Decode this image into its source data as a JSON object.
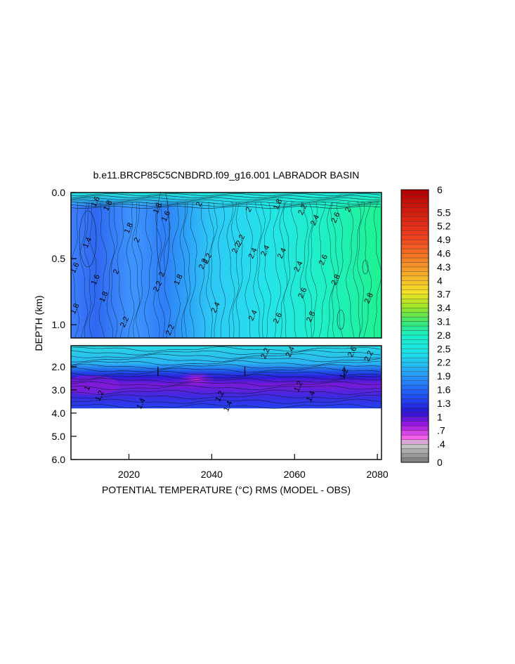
{
  "chart_data": {
    "type": "heatmap",
    "title": "b.e11.BRCP85C5CNBDRD.f09_g16.001 LABRADOR BASIN",
    "xlabel": "POTENTIAL TEMPERATURE (°C) RMS (MODEL - OBS)",
    "ylabel": "DEPTH (km)",
    "x_ticks": [
      2020,
      2040,
      2060,
      2080
    ],
    "x_tick_labels": [
      "2020",
      "2040",
      "2060",
      "2080"
    ],
    "xlim": [
      2006,
      2081
    ],
    "upper_panel": {
      "ylim": [
        0.0,
        1.1
      ],
      "y_ticks": [
        0.0,
        0.5,
        1.0
      ],
      "y_tick_labels": [
        "0.0",
        "0.5",
        "1.0"
      ]
    },
    "lower_panel": {
      "ylim": [
        1.1,
        6.0
      ],
      "y_ticks": [
        2.0,
        3.0,
        4.0,
        5.0,
        6.0
      ],
      "y_tick_labels": [
        "2.0",
        "3.0",
        "4.0",
        "5.0",
        "6.0"
      ],
      "data_bottom_depth": 3.8
    },
    "colorbar": {
      "min": 0,
      "max": 6,
      "tick_values": [
        6,
        5.5,
        5.2,
        4.9,
        4.6,
        4.3,
        4,
        3.7,
        3.4,
        3.1,
        2.8,
        2.5,
        2.2,
        1.9,
        1.6,
        1.3,
        1,
        0.7,
        0.4,
        0
      ],
      "tick_labels": [
        "6",
        "5.5",
        "5.2",
        "4.9",
        "4.6",
        "4.3",
        "4",
        "3.7",
        "3.4",
        "3.1",
        "2.8",
        "2.5",
        "2.2",
        "1.9",
        "1.6",
        "1.3",
        "1",
        ".7",
        ".4",
        "0"
      ]
    },
    "contour_labels": [
      {
        "text": "1.6",
        "x": 2012,
        "d": 0.07
      },
      {
        "text": "1.8",
        "x": 2015,
        "d": 0.1
      },
      {
        "text": "1.8",
        "x": 2020,
        "d": 0.27
      },
      {
        "text": "1.8",
        "x": 2027,
        "d": 0.12
      },
      {
        "text": "1.6",
        "x": 2029,
        "d": 0.18
      },
      {
        "text": "2",
        "x": 2037,
        "d": 0.09
      },
      {
        "text": "1.4",
        "x": 2010,
        "d": 0.38
      },
      {
        "text": "1.6",
        "x": 2007,
        "d": 0.57
      },
      {
        "text": "1.6",
        "x": 2012,
        "d": 0.66
      },
      {
        "text": "1.8",
        "x": 2014,
        "d": 0.79
      },
      {
        "text": "1.8",
        "x": 2007,
        "d": 0.88
      },
      {
        "text": "2",
        "x": 2017,
        "d": 0.6
      },
      {
        "text": "2",
        "x": 2022,
        "d": 0.36
      },
      {
        "text": "2.2",
        "x": 2027,
        "d": 0.71
      },
      {
        "text": "2",
        "x": 2028,
        "d": 0.62
      },
      {
        "text": "1.8",
        "x": 2032,
        "d": 0.66
      },
      {
        "text": "2.2",
        "x": 2019,
        "d": 0.98
      },
      {
        "text": "2.2",
        "x": 2030,
        "d": 1.04
      },
      {
        "text": "2.2",
        "x": 2039,
        "d": 0.5
      },
      {
        "text": "2.2",
        "x": 2038,
        "d": 0.54
      },
      {
        "text": "2.2",
        "x": 2047,
        "d": 0.36
      },
      {
        "text": "2.2",
        "x": 2046,
        "d": 0.42
      },
      {
        "text": "2.4",
        "x": 2041,
        "d": 0.87
      },
      {
        "text": "2",
        "x": 2049,
        "d": 0.13
      },
      {
        "text": "1.8",
        "x": 2056,
        "d": 0.09
      },
      {
        "text": "2.4",
        "x": 2050,
        "d": 0.46
      },
      {
        "text": "2.4",
        "x": 2057,
        "d": 0.46
      },
      {
        "text": "2.4",
        "x": 2053,
        "d": 0.44
      },
      {
        "text": "2.6",
        "x": 2056,
        "d": 0.95
      },
      {
        "text": "2.4",
        "x": 2050,
        "d": 0.93
      },
      {
        "text": "2.4",
        "x": 2061,
        "d": 0.56
      },
      {
        "text": "2.2",
        "x": 2062,
        "d": 0.13
      },
      {
        "text": "2.4",
        "x": 2065,
        "d": 0.21
      },
      {
        "text": "2.6",
        "x": 2070,
        "d": 0.19
      },
      {
        "text": "2",
        "x": 2073,
        "d": 0.13
      },
      {
        "text": "2.6",
        "x": 2067,
        "d": 0.51
      },
      {
        "text": "2.6",
        "x": 2062,
        "d": 0.76
      },
      {
        "text": "2.8",
        "x": 2064,
        "d": 0.94
      },
      {
        "text": "2.8",
        "x": 2070,
        "d": 0.66
      },
      {
        "text": "2.8",
        "x": 2078,
        "d": 0.8
      },
      {
        "text": "2.4",
        "x": 2059,
        "d": 1.37
      },
      {
        "text": "2.2",
        "x": 2053,
        "d": 1.43
      },
      {
        "text": "2.6",
        "x": 2074,
        "d": 1.37
      },
      {
        "text": "2.2",
        "x": 2078,
        "d": 1.55
      },
      {
        "text": "1.2",
        "x": 2061,
        "d": 2.86
      },
      {
        "text": "1.4",
        "x": 2064,
        "d": 3.28
      },
      {
        "text": "1.2",
        "x": 2042,
        "d": 3.28
      },
      {
        "text": "1.4",
        "x": 2044,
        "d": 3.71
      },
      {
        "text": "1.2",
        "x": 2013,
        "d": 3.26
      },
      {
        "text": "1",
        "x": 2010,
        "d": 2.93
      },
      {
        "text": "1.4",
        "x": 2023,
        "d": 3.6
      },
      {
        "text": "1.2",
        "x": 2072,
        "d": 2.3
      }
    ]
  }
}
